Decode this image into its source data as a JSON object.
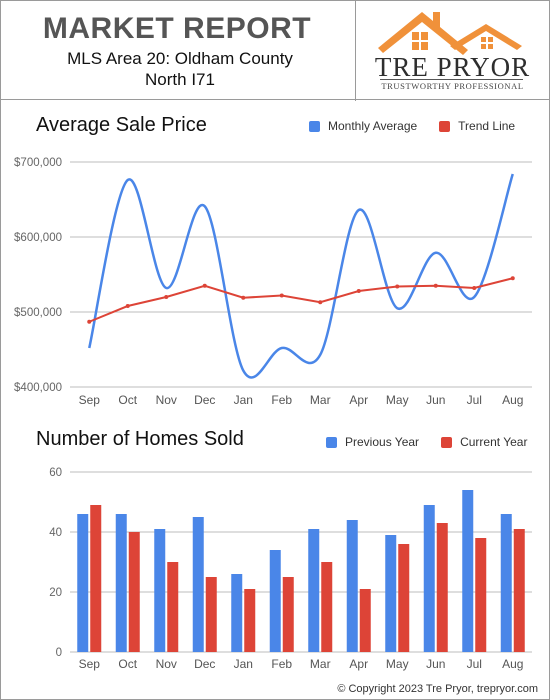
{
  "header": {
    "title": "MARKET REPORT",
    "subtitle_line1": "MLS Area 20: Oldham County",
    "subtitle_line2": "North I71",
    "brand_name": "TRE PRYOR",
    "brand_tagline": "TRUSTWORTHY PROFESSIONAL",
    "brand_color": "#f0913a"
  },
  "footer": {
    "copyright": "© Copyright 2023 Tre Pryor, trepryor.com"
  },
  "chart_data": [
    {
      "type": "line",
      "title": "Average Sale Price",
      "categories": [
        "Sep",
        "Oct",
        "Nov",
        "Dec",
        "Jan",
        "Feb",
        "Mar",
        "Apr",
        "May",
        "Jun",
        "Jul",
        "Aug"
      ],
      "ylim": [
        400000,
        700000
      ],
      "yticks": [
        400000,
        500000,
        600000,
        700000
      ],
      "ytick_labels": [
        "$400,000",
        "$500,000",
        "$600,000",
        "$700,000"
      ],
      "grid": true,
      "legend_position": "top-right",
      "series": [
        {
          "name": "Monthly Average",
          "color": "#4a86e8",
          "smooth": true,
          "values": [
            452000,
            676000,
            532000,
            641000,
            422000,
            452000,
            443000,
            636000,
            505000,
            579000,
            520000,
            684000
          ]
        },
        {
          "name": "Trend Line",
          "color": "#dd4437",
          "smooth": false,
          "markers": true,
          "values": [
            487000,
            508000,
            520000,
            535000,
            519000,
            522000,
            513000,
            528000,
            534000,
            535000,
            532000,
            545000
          ]
        }
      ]
    },
    {
      "type": "bar",
      "title": "Number of Homes Sold",
      "categories": [
        "Sep",
        "Oct",
        "Nov",
        "Dec",
        "Jan",
        "Feb",
        "Mar",
        "Apr",
        "May",
        "Jun",
        "Jul",
        "Aug"
      ],
      "ylim": [
        0,
        60
      ],
      "yticks": [
        0,
        20,
        40,
        60
      ],
      "ytick_labels": [
        "0",
        "20",
        "40",
        "60"
      ],
      "grid": true,
      "legend_position": "top-right",
      "series": [
        {
          "name": "Previous Year",
          "color": "#4a86e8",
          "values": [
            46,
            46,
            41,
            45,
            26,
            34,
            41,
            44,
            39,
            49,
            54,
            46
          ]
        },
        {
          "name": "Current Year",
          "color": "#dd4437",
          "values": [
            49,
            40,
            30,
            25,
            21,
            25,
            30,
            21,
            36,
            43,
            38,
            41
          ]
        }
      ]
    }
  ]
}
